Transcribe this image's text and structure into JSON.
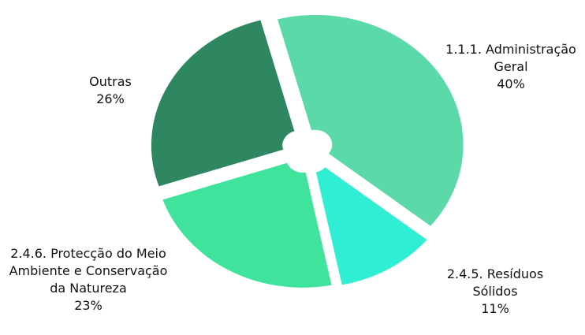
{
  "chart_data": {
    "type": "pie",
    "categories": [
      "1.1.1. Administração Geral",
      "2.4.5. Resíduos Sólidos",
      "2.4.6. Protecção do Meio Ambiente e Conservação da Natureza",
      "Outras"
    ],
    "values": [
      40,
      11,
      23,
      26
    ],
    "value_labels": [
      "40%",
      "11%",
      "23%",
      "26%"
    ],
    "colors": [
      "#5cd9a9",
      "#30eed4",
      "#3fe39b",
      "#2f8762"
    ]
  }
}
